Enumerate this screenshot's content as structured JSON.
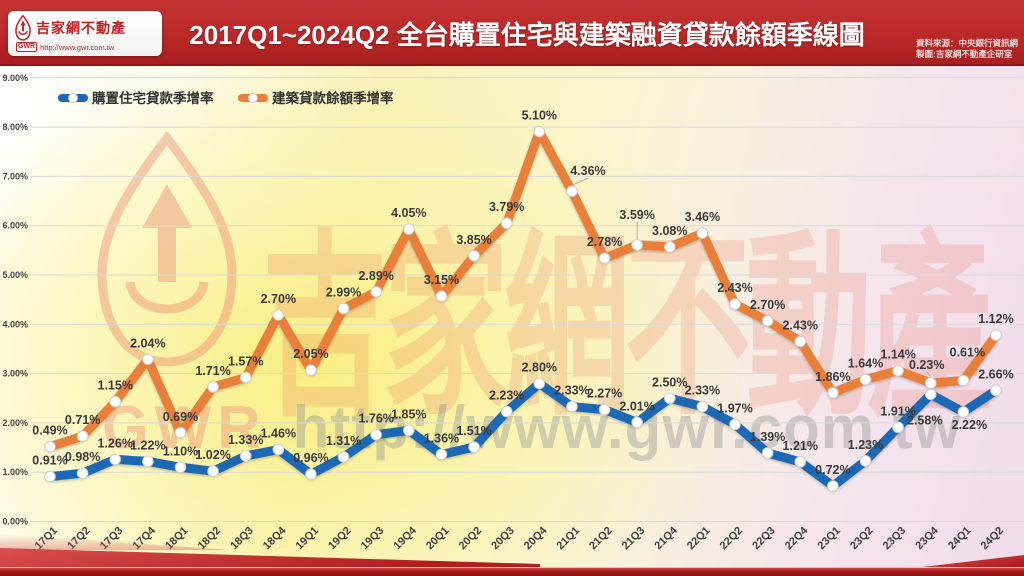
{
  "header": {
    "logo_box": {
      "brand": "吉家網不動產",
      "gwr_badge": "GWR",
      "url": "http://www.gwr.com.tw"
    },
    "title": "2017Q1~2024Q2 全台購置住宅與建築融資貸款餘額季線圖",
    "source_line1": "資料來源：中央銀行資訊網",
    "source_line2": "製圖:吉家網不動產企研室"
  },
  "watermark": {
    "brand_text": "GWR",
    "chinese_text": "吉家網不動產",
    "url_text": "http://www.gwr.com.tw"
  },
  "colors": {
    "header_red": "#bb2828",
    "housing_blue": "#1c68b4",
    "construction_orange": "#e8803a",
    "gridline_gray": "#d9d9d9",
    "label_dark": "#3a3a3a"
  },
  "chart_data": {
    "type": "line",
    "title": "2017Q1~2024Q2 全台購置住宅與建築融資貸款餘額季線圖",
    "categories": [
      "17Q1",
      "17Q2",
      "17Q3",
      "17Q4",
      "18Q1",
      "18Q2",
      "18Q3",
      "18Q4",
      "19Q1",
      "19Q2",
      "19Q3",
      "19Q4",
      "20Q1",
      "20Q2",
      "20Q3",
      "20Q4",
      "21Q1",
      "21Q2",
      "21Q3",
      "21Q4",
      "22Q1",
      "22Q2",
      "22Q3",
      "22Q4",
      "23Q1",
      "23Q2",
      "23Q3",
      "23Q4",
      "24Q1",
      "24Q2"
    ],
    "series": [
      {
        "name": "購置住宅貸款季增率",
        "color": "#1c68b4",
        "values": [
          0.91,
          0.98,
          1.26,
          1.22,
          1.1,
          1.02,
          1.33,
          1.46,
          0.96,
          1.31,
          1.76,
          1.85,
          1.36,
          1.51,
          2.23,
          2.8,
          2.33,
          2.27,
          2.01,
          2.5,
          2.33,
          1.97,
          1.39,
          1.21,
          0.72,
          1.23,
          1.91,
          2.58,
          2.22,
          2.66
        ]
      },
      {
        "name": "建築貸款餘額季增率",
        "color": "#e8803a",
        "values": [
          0.49,
          0.71,
          1.15,
          2.04,
          0.69,
          1.71,
          1.57,
          2.7,
          2.05,
          2.99,
          2.89,
          4.05,
          3.15,
          3.85,
          3.79,
          5.1,
          4.36,
          2.78,
          3.59,
          3.08,
          3.46,
          2.43,
          2.7,
          2.43,
          1.86,
          1.64,
          1.14,
          0.23,
          0.61,
          1.12
        ],
        "values_as_drawn": [
          1.52,
          1.73,
          2.43,
          3.29,
          1.8,
          2.73,
          2.92,
          4.19,
          3.07,
          4.32,
          4.66,
          5.93,
          4.57,
          5.39,
          6.05,
          7.91,
          6.7,
          5.34,
          5.61,
          5.57,
          5.85,
          4.41,
          4.07,
          3.65,
          2.61,
          2.88,
          3.06,
          2.81,
          2.86,
          3.78
        ]
      }
    ],
    "y_ticks": [
      "9.00%",
      "8.00%",
      "7.00%",
      "6.00%",
      "5.00%",
      "4.00%",
      "3.00%",
      "2.00%",
      "1.00%",
      "0.00%"
    ],
    "ylim": [
      0,
      9
    ],
    "xlabel": "",
    "ylabel": "",
    "grid": true,
    "legend_position": "top-left",
    "data_labels": true
  }
}
